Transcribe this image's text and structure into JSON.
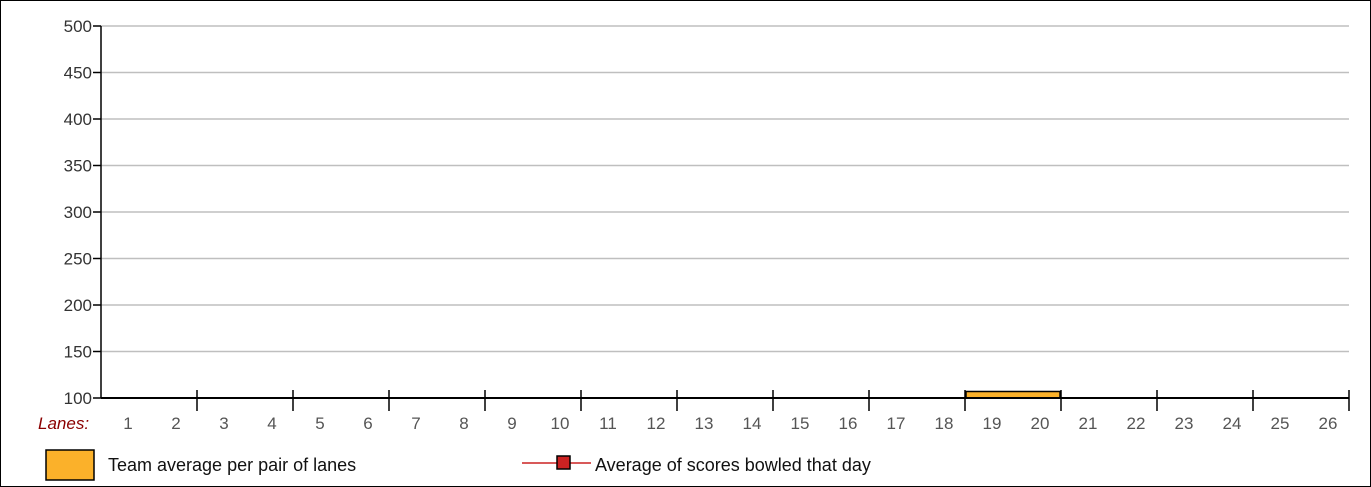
{
  "chart_data": {
    "type": "bar",
    "title": "",
    "xlabel": "Lanes:",
    "ylabel": "",
    "ylim": [
      100,
      500
    ],
    "yticks": [
      100,
      150,
      200,
      250,
      300,
      350,
      400,
      450,
      500
    ],
    "grid": true,
    "lanes": [
      "1",
      "2",
      "3",
      "4",
      "5",
      "6",
      "7",
      "8",
      "9",
      "10",
      "11",
      "12",
      "13",
      "14",
      "15",
      "16",
      "17",
      "18",
      "19",
      "20",
      "21",
      "22",
      "23",
      "24",
      "25",
      "26"
    ],
    "categories": [
      "1-2",
      "3-4",
      "5-6",
      "7-8",
      "9-10",
      "11-12",
      "13-14",
      "15-16",
      "17-18",
      "19-20",
      "21-22",
      "23-24",
      "25-26"
    ],
    "series": [
      {
        "name": "Team average per pair of lanes",
        "type": "bar",
        "color": "#fbb12a",
        "values": [
          null,
          null,
          null,
          null,
          null,
          null,
          null,
          null,
          null,
          107,
          null,
          null,
          null
        ]
      },
      {
        "name": "Average of scores bowled that day",
        "type": "line",
        "color": "#cc2222",
        "values": [
          null,
          null,
          null,
          null,
          null,
          null,
          null,
          null,
          null,
          null,
          null,
          null,
          null
        ]
      }
    ],
    "legend": {
      "placement": "bottom-left",
      "items": [
        {
          "label": "Team average per pair of lanes",
          "icon": "orange-box-icon",
          "color": "#fbb12a"
        },
        {
          "label": "Average of scores bowled that day",
          "icon": "red-line-marker-icon",
          "color": "#cc2222"
        }
      ]
    }
  }
}
